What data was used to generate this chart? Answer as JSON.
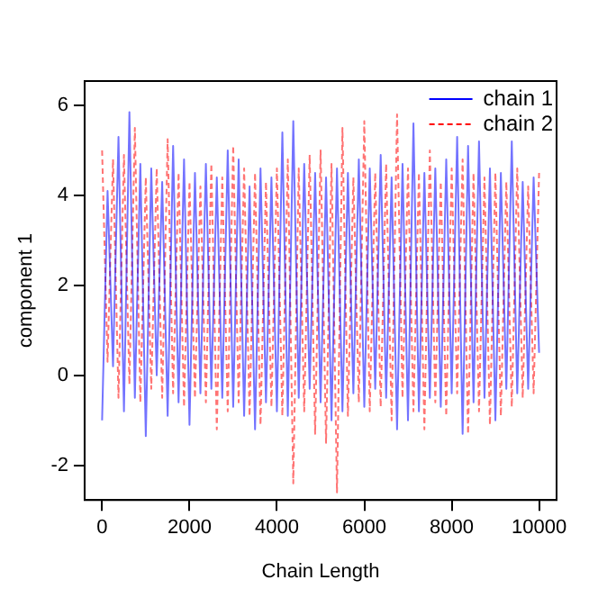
{
  "chart_data": {
    "type": "line",
    "xlabel": "Chain Length",
    "ylabel": "component 1",
    "xlim": [
      -400,
      10400
    ],
    "xticks": [
      0,
      2000,
      4000,
      6000,
      8000,
      10000
    ],
    "ylim": [
      -2.77,
      6.54
    ],
    "yticks": [
      -2,
      0,
      2,
      4,
      6
    ],
    "grid": false,
    "legend": "top right",
    "marker": "none",
    "x": [
      0,
      125,
      250,
      375,
      500,
      625,
      750,
      875,
      1000,
      1125,
      1250,
      1375,
      1500,
      1625,
      1750,
      1875,
      2000,
      2125,
      2250,
      2375,
      2500,
      2625,
      2750,
      2875,
      3000,
      3125,
      3250,
      3375,
      3500,
      3625,
      3750,
      3875,
      4000,
      4125,
      4250,
      4375,
      4500,
      4625,
      4750,
      4875,
      5000,
      5125,
      5250,
      5375,
      5500,
      5625,
      5750,
      5875,
      6000,
      6125,
      6250,
      6375,
      6500,
      6625,
      6750,
      6875,
      7000,
      7125,
      7250,
      7375,
      7500,
      7625,
      7750,
      7875,
      8000,
      8125,
      8250,
      8375,
      8500,
      8625,
      8750,
      8875,
      9000,
      9125,
      9250,
      9375,
      9500,
      9625,
      9750,
      9875,
      10000
    ],
    "series": [
      {
        "name": "chain 1",
        "color": "#0000ff",
        "line_style": "solid",
        "values": [
          -1.0,
          4.1,
          0.2,
          5.3,
          -0.8,
          5.85,
          -0.5,
          4.7,
          -1.35,
          4.6,
          0.0,
          4.3,
          -0.9,
          5.1,
          -0.6,
          4.8,
          -1.1,
          4.5,
          -0.4,
          4.7,
          -0.3,
          4.4,
          -0.5,
          5.0,
          -0.7,
          4.8,
          -0.9,
          4.2,
          -1.2,
          4.6,
          -0.6,
          4.4,
          -0.8,
          5.4,
          -0.9,
          5.65,
          -0.5,
          4.7,
          -0.3,
          4.5,
          -0.6,
          4.4,
          -1.0,
          4.6,
          -0.8,
          4.5,
          -0.4,
          4.8,
          -0.7,
          4.6,
          -0.3,
          4.9,
          -0.5,
          4.4,
          -1.2,
          4.7,
          -1.0,
          5.6,
          -0.8,
          4.5,
          -0.5,
          4.6,
          -0.7,
          4.8,
          -0.4,
          5.3,
          -1.3,
          5.1,
          -0.6,
          5.2,
          -0.5,
          4.6,
          -1.0,
          4.5,
          -0.3,
          5.2,
          -0.4,
          4.3,
          -0.3,
          4.4,
          0.5
        ]
      },
      {
        "name": "chain 2",
        "color": "#ff0000",
        "line_style": "dashed",
        "values": [
          5.0,
          0.3,
          4.8,
          -0.5,
          4.9,
          -0.2,
          5.5,
          -0.6,
          4.4,
          -0.3,
          4.6,
          -0.5,
          5.25,
          -0.4,
          4.5,
          -0.7,
          4.3,
          -0.5,
          4.2,
          -0.6,
          4.7,
          -1.2,
          4.4,
          -0.8,
          5.1,
          -0.6,
          4.6,
          -0.9,
          4.5,
          -1.1,
          4.3,
          -0.7,
          4.6,
          -0.9,
          4.8,
          -2.4,
          4.6,
          -0.8,
          4.9,
          -1.3,
          5.0,
          -1.5,
          4.7,
          -2.6,
          5.5,
          -0.9,
          4.4,
          -0.6,
          5.65,
          -0.8,
          4.5,
          -0.7,
          4.7,
          -1.0,
          5.8,
          -0.5,
          4.6,
          -0.8,
          4.5,
          -1.2,
          5.0,
          -0.6,
          4.3,
          -0.9,
          4.6,
          -0.4,
          4.8,
          -1.3,
          4.5,
          -0.8,
          4.4,
          -1.1,
          4.5,
          -0.9,
          4.3,
          -0.7,
          4.6,
          -0.5,
          4.2,
          -0.4,
          4.5
        ]
      }
    ]
  }
}
